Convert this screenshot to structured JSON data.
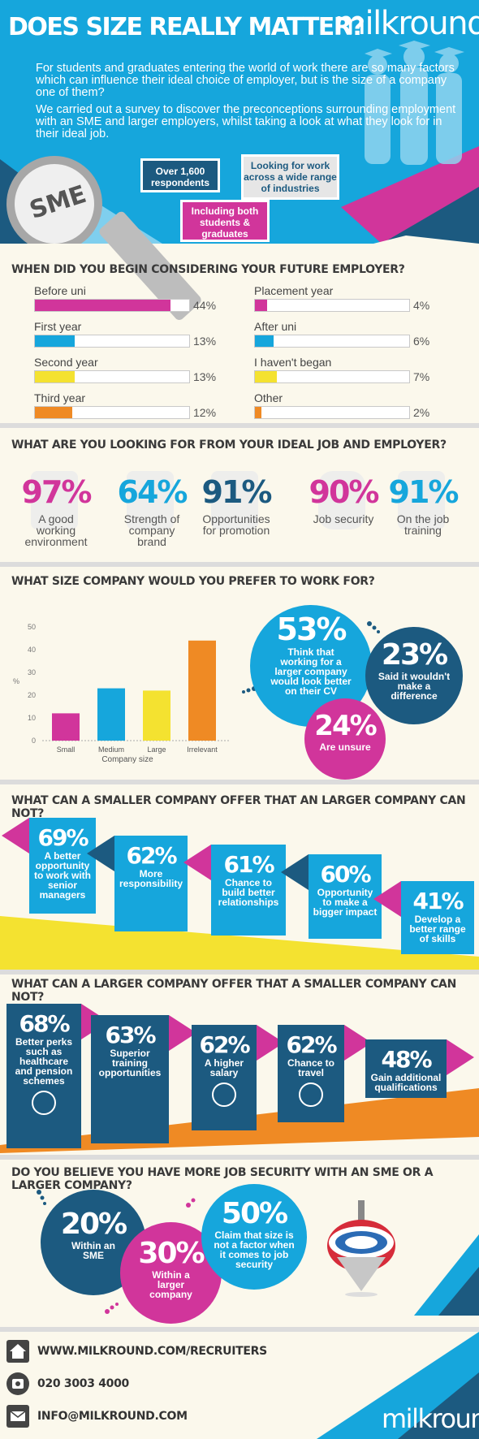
{
  "colors": {
    "blue": "#16a6dc",
    "navy": "#1c5a80",
    "pink": "#d1359b",
    "yellow": "#f4e230",
    "orange": "#ef8a24",
    "grey": "#b8b8b8"
  },
  "header": {
    "title": "DOES SIZE REALLY MATTER?",
    "brand": "milkround",
    "intro1": "For students and graduates entering the world of work there are so many factors which can influence their ideal choice of employer, but is the size of a company one of them?",
    "intro2": "We carried out a survey to discover the preconceptions surrounding employment with an SME and larger employers, whilst taking a look at what they look for in their ideal job.",
    "box_respondents": "Over 1,600 respondents",
    "box_industries": "Looking for work across a wide range of industries",
    "box_students": "Including both students & graduates",
    "magnifier_text": "SME"
  },
  "consider": {
    "title": "WHEN DID YOU BEGIN CONSIDERING YOUR FUTURE EMPLOYER?",
    "left": [
      {
        "label": "Before uni",
        "value": 44,
        "display": "44%",
        "color": "#d1359b"
      },
      {
        "label": "First year",
        "value": 13,
        "display": "13%",
        "color": "#16a6dc"
      },
      {
        "label": "Second year",
        "value": 13,
        "display": "13%",
        "color": "#f4e230"
      },
      {
        "label": "Third year",
        "value": 12,
        "display": "12%",
        "color": "#ef8a24"
      }
    ],
    "right": [
      {
        "label": "Placement year",
        "value": 4,
        "display": "4%",
        "color": "#d1359b"
      },
      {
        "label": "After uni",
        "value": 6,
        "display": "6%",
        "color": "#16a6dc"
      },
      {
        "label": "I haven't began",
        "value": 7,
        "display": "7%",
        "color": "#f4e230"
      },
      {
        "label": "Other",
        "value": 2,
        "display": "2%",
        "color": "#ef8a24"
      }
    ]
  },
  "ideal": {
    "title": "WHAT ARE YOU LOOKING FOR FROM YOUR IDEAL JOB AND EMPLOYER?",
    "items": [
      {
        "value": "97%",
        "label": "A good working environment",
        "color": "#d1359b",
        "icon": "check-icon"
      },
      {
        "value": "64%",
        "label": "Strength of company brand",
        "color": "#16a6dc",
        "icon": "shield-icon"
      },
      {
        "value": "91%",
        "label": "Opportunities for promotion",
        "color": "#1c5a80",
        "icon": "arrow-up-icon"
      },
      {
        "value": "90%",
        "label": "Job security",
        "color": "#d1359b",
        "icon": "lock-icon"
      },
      {
        "value": "91%",
        "label": "On the job training",
        "color": "#16a6dc",
        "icon": "thumbs-up-icon"
      }
    ]
  },
  "size": {
    "title": "WHAT SIZE COMPANY WOULD YOU PREFER TO WORK FOR?",
    "c53": {
      "value": "53%",
      "text": "Think that working for a larger company would look better on their CV"
    },
    "c23": {
      "value": "23%",
      "text": "Said it wouldn't make a difference"
    },
    "c24": {
      "value": "24%",
      "text": "Are unsure"
    }
  },
  "chart_data": {
    "type": "bar",
    "categories": [
      "Small",
      "Medium",
      "Large",
      "Irrelevant"
    ],
    "values": [
      12,
      23,
      22,
      44
    ],
    "colors": [
      "#d1359b",
      "#16a6dc",
      "#f4e230",
      "#ef8a24"
    ],
    "xlabel": "Company size",
    "ylabel": "%",
    "ylim": [
      0,
      50
    ],
    "yticks": [
      "0",
      "10",
      "20",
      "30",
      "40",
      "50"
    ],
    "grid": false
  },
  "smaller": {
    "title": "WHAT CAN A SMALLER COMPANY OFFER THAT AN LARGER COMPANY CAN NOT?",
    "items": [
      {
        "value": "69%",
        "text": "A better opportunity to work with senior managers"
      },
      {
        "value": "62%",
        "text": "More responsibility"
      },
      {
        "value": "61%",
        "text": "Chance to build better relationships"
      },
      {
        "value": "60%",
        "text": "Opportunity to make a bigger impact"
      },
      {
        "value": "41%",
        "text": "Develop a better range of skills"
      }
    ]
  },
  "larger": {
    "title": "WHAT CAN A LARGER COMPANY OFFER THAT A SMALLER COMPANY CAN NOT?",
    "items": [
      {
        "value": "68%",
        "text": "Better perks such as healthcare and pension schemes",
        "icon": "stethoscope-icon"
      },
      {
        "value": "63%",
        "text": "Superior training opportunities",
        "icon": ""
      },
      {
        "value": "62%",
        "text": "A higher salary",
        "icon": "money-bag-icon"
      },
      {
        "value": "62%",
        "text": "Chance to travel",
        "icon": "globe-icon"
      },
      {
        "value": "48%",
        "text": "Gain additional qualifications",
        "icon": ""
      }
    ]
  },
  "security": {
    "title": "DO YOU BELIEVE YOU HAVE MORE JOB SECURITY WITH AN SME OR A LARGER COMPANY?",
    "c20": {
      "value": "20%",
      "text": "Within an SME"
    },
    "c30": {
      "value": "30%",
      "text": "Within a larger company"
    },
    "c50": {
      "value": "50%",
      "text": "Claim that size is not a factor when it comes to job security"
    }
  },
  "footer": {
    "website": "WWW.MILKROUND.COM/RECRUITERS",
    "phone": "020 3003 4000",
    "email": "INFO@MILKROUND.COM",
    "brand": "milkround"
  }
}
